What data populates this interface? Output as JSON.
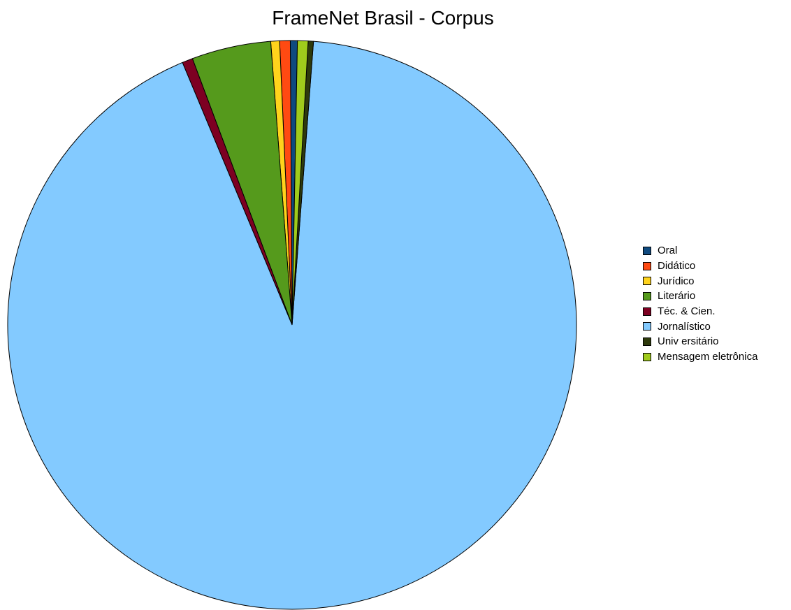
{
  "chart_data": {
    "type": "pie",
    "title": "FrameNet Brasil - Corpus",
    "legend_position": "right",
    "slices": [
      {
        "label": "Oral",
        "value": 0.4,
        "color": "#0f4a7f"
      },
      {
        "label": "Didático",
        "value": 0.6,
        "color": "#ff4a12"
      },
      {
        "label": "Jurídico",
        "value": 0.5,
        "color": "#ffd31c"
      },
      {
        "label": "Literário",
        "value": 4.5,
        "color": "#559a1c"
      },
      {
        "label": "Téc. & Cien.",
        "value": 0.6,
        "color": "#7d0022"
      },
      {
        "label": "Jornalístico",
        "value": 92.5,
        "color": "#83caff"
      },
      {
        "label": "Univ ersitário",
        "value": 0.3,
        "color": "#2e3a0c"
      },
      {
        "label": "Mensagem eletrônica",
        "value": 0.6,
        "color": "#a0cb1c"
      }
    ]
  }
}
